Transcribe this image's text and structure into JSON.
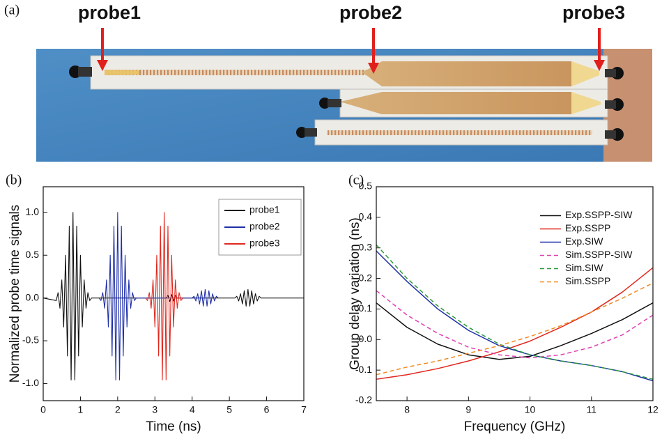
{
  "photo": {
    "panel": "(a)",
    "probes": [
      "probe1",
      "probe2",
      "probe3"
    ]
  },
  "chart_data": [
    {
      "type": "line",
      "panel": "(b)",
      "xlabel": "Time (ns)",
      "ylabel": "Normalized probe time signals",
      "xlim": [
        0,
        7
      ],
      "xticks": [
        0,
        1,
        2,
        3,
        4,
        5,
        6,
        7
      ],
      "ylim": [
        -1.2,
        1.3
      ],
      "yticks": [
        {
          "value": -1,
          "label": "-1.0"
        },
        -0.5,
        {
          "value": 0,
          "label": "0.0"
        },
        0.5,
        {
          "value": 1,
          "label": "1.0"
        }
      ],
      "legend": "upper right",
      "legend_frame": true,
      "series": [
        {
          "name": "probe1",
          "color": "#111111",
          "x": [
            0,
            0.35,
            0.4,
            0.45,
            0.5,
            0.55,
            0.6,
            0.65,
            0.7,
            0.75,
            0.8,
            0.85,
            0.9,
            0.95,
            1.0,
            1.05,
            1.1,
            1.15,
            1.2,
            1.25,
            1.3,
            3.3,
            3.35,
            3.4,
            3.45,
            3.5,
            3.55,
            3.6,
            5.15,
            5.2,
            5.25,
            5.3,
            5.35,
            5.4,
            5.45,
            5.5,
            5.55,
            5.6,
            5.65,
            5.7,
            5.75,
            5.8,
            5.85,
            7
          ],
          "values": [
            0,
            -0.03,
            0.063,
            -0.12,
            0.211,
            -0.339,
            0.5,
            -0.678,
            0.841,
            -0.958,
            1,
            -0.958,
            0.841,
            -0.678,
            0.5,
            -0.339,
            0.211,
            -0.12,
            0.063,
            -0.03,
            0,
            0,
            0.03,
            -0.04,
            0.04,
            -0.035,
            0.03,
            0,
            0,
            0.02,
            -0.035,
            0.05,
            -0.07,
            0.085,
            -0.095,
            0.1,
            -0.095,
            0.085,
            -0.07,
            0.05,
            -0.035,
            0.02,
            0,
            0
          ]
        },
        {
          "name": "probe2",
          "color": "#1f2fa8",
          "x": [
            1.5,
            1.55,
            1.6,
            1.65,
            1.7,
            1.75,
            1.8,
            1.85,
            1.9,
            1.95,
            2.0,
            2.05,
            2.1,
            2.15,
            2.2,
            2.25,
            2.3,
            2.35,
            2.4,
            2.45,
            2.5,
            4.0,
            4.05,
            4.1,
            4.15,
            4.2,
            4.25,
            4.3,
            4.35,
            4.4,
            4.45,
            4.5,
            4.55,
            4.6,
            4.65,
            4.7
          ],
          "values": [
            0,
            -0.03,
            0.063,
            -0.12,
            0.211,
            -0.339,
            0.5,
            -0.678,
            0.841,
            -0.958,
            1,
            -0.958,
            0.841,
            -0.678,
            0.5,
            -0.339,
            0.211,
            -0.12,
            0.063,
            -0.03,
            0,
            0,
            0.02,
            -0.035,
            0.05,
            -0.07,
            0.085,
            -0.095,
            0.1,
            -0.095,
            0.085,
            -0.07,
            0.05,
            -0.035,
            0.02,
            0
          ]
        },
        {
          "name": "probe3",
          "color": "#e0281e",
          "x": [
            2.75,
            2.8,
            2.85,
            2.9,
            2.95,
            3.0,
            3.05,
            3.1,
            3.15,
            3.2,
            3.25,
            3.3,
            3.35,
            3.4,
            3.45,
            3.5,
            3.55,
            3.6,
            3.65,
            3.7,
            3.75
          ],
          "values": [
            0,
            -0.03,
            0.063,
            -0.12,
            0.211,
            -0.339,
            0.5,
            -0.678,
            0.841,
            -0.958,
            1,
            -0.958,
            0.841,
            -0.678,
            0.5,
            -0.339,
            0.211,
            -0.12,
            0.063,
            -0.03,
            0
          ]
        }
      ]
    },
    {
      "type": "line",
      "panel": "(c)",
      "xlabel": "Frequency (GHz)",
      "ylabel": "Group delay variation (ns)",
      "xlim": [
        7.5,
        12
      ],
      "xticks": [
        8,
        9,
        10,
        11,
        12
      ],
      "ylim": [
        -0.2,
        0.5
      ],
      "yticks": [
        -0.2,
        -0.1,
        {
          "value": 0,
          "label": "0.0"
        },
        0.1,
        0.2,
        0.3,
        0.4,
        0.5
      ],
      "legend": "upper right",
      "legend_frame": false,
      "x": [
        7.5,
        8,
        8.5,
        9,
        9.5,
        10,
        10.5,
        11,
        11.5,
        12
      ],
      "series": [
        {
          "name": "Exp.SSPP-SIW",
          "color": "#111111",
          "dashed": false,
          "values": [
            0.12,
            0.04,
            -0.015,
            -0.05,
            -0.065,
            -0.055,
            -0.02,
            0.02,
            0.065,
            0.12
          ]
        },
        {
          "name": "Exp.SSPP",
          "color": "#e0281e",
          "dashed": false,
          "values": [
            -0.13,
            -0.115,
            -0.095,
            -0.07,
            -0.04,
            -0.005,
            0.04,
            0.09,
            0.155,
            0.235
          ]
        },
        {
          "name": "Exp.SIW",
          "color": "#1f2fa8",
          "dashed": false,
          "values": [
            0.29,
            0.19,
            0.1,
            0.03,
            -0.02,
            -0.05,
            -0.07,
            -0.085,
            -0.105,
            -0.135
          ]
        },
        {
          "name": "Sim.SSPP-SIW",
          "color": "#e040b0",
          "dashed": true,
          "values": [
            0.16,
            0.08,
            0.02,
            -0.025,
            -0.05,
            -0.06,
            -0.05,
            -0.025,
            0.015,
            0.08
          ]
        },
        {
          "name": "Sim.SIW",
          "color": "#2a9a3a",
          "dashed": true,
          "values": [
            0.31,
            0.2,
            0.11,
            0.04,
            -0.015,
            -0.05,
            -0.07,
            -0.085,
            -0.105,
            -0.13
          ]
        },
        {
          "name": "Sim.SSPP",
          "color": "#f08a20",
          "dashed": true,
          "values": [
            -0.115,
            -0.09,
            -0.07,
            -0.045,
            -0.02,
            0.01,
            0.045,
            0.09,
            0.135,
            0.185
          ]
        }
      ]
    }
  ]
}
